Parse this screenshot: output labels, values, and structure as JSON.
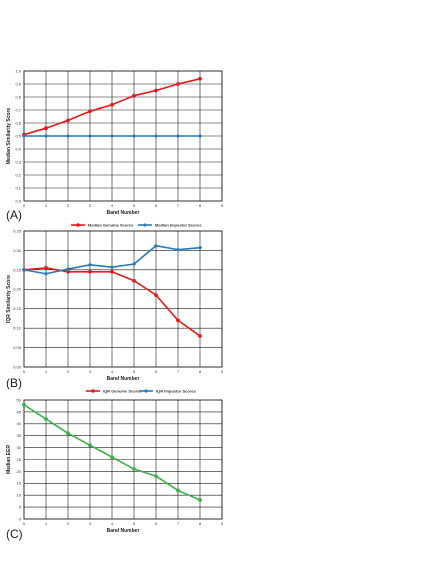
{
  "chart_data": [
    {
      "type": "line",
      "panel_label": "(A)",
      "xlabel": "Band Number",
      "ylabel": "Median Similarity Score",
      "xlim": [
        0,
        9
      ],
      "ylim": [
        0,
        1.0
      ],
      "x_ticks": [
        "0",
        "1",
        "2",
        "3",
        "4",
        "5",
        "6",
        "7",
        "8",
        "9"
      ],
      "y_ticks": [
        "0.0",
        "0.1",
        "0.2",
        "0.3",
        "0.4",
        "0.5",
        "0.6",
        "0.7",
        "0.8",
        "0.9",
        "1.0"
      ],
      "grid": true,
      "legend_position": "bottom",
      "x": [
        0,
        1,
        2,
        3,
        4,
        5,
        6,
        7,
        8
      ],
      "series": [
        {
          "name": "Median Genuine Scores",
          "color": "#e8191c",
          "marker": "circle",
          "values": [
            0.51,
            0.56,
            0.62,
            0.69,
            0.74,
            0.81,
            0.85,
            0.9,
            0.94
          ]
        },
        {
          "name": "Median Impostor Scores",
          "color": "#2a7ab8",
          "marker": "diamond",
          "values": [
            0.5,
            0.5,
            0.5,
            0.5,
            0.5,
            0.5,
            0.5,
            0.5,
            0.5
          ]
        }
      ]
    },
    {
      "type": "line",
      "panel_label": "(B)",
      "xlabel": "Band Number",
      "ylabel": "IQR Similarity Score",
      "xlim": [
        0,
        9
      ],
      "ylim": [
        0,
        0.35
      ],
      "x_ticks": [
        "0",
        "1",
        "2",
        "3",
        "4",
        "5",
        "6",
        "7",
        "8",
        "9"
      ],
      "y_ticks": [
        "0.00",
        "0.05",
        "0.10",
        "0.15",
        "0.20",
        "0.25",
        "0.30",
        "0.35"
      ],
      "grid": true,
      "legend_position": "bottom",
      "x": [
        0,
        1,
        2,
        3,
        4,
        5,
        6,
        7,
        8
      ],
      "series": [
        {
          "name": "IQR Genuine Scores",
          "color": "#e8191c",
          "marker": "circle",
          "values": [
            0.25,
            0.255,
            0.245,
            0.245,
            0.245,
            0.222,
            0.185,
            0.12,
            0.08
          ]
        },
        {
          "name": "IQR Impostor Scores",
          "color": "#2a7ab8",
          "marker": "diamond",
          "values": [
            0.25,
            0.24,
            0.252,
            0.263,
            0.257,
            0.265,
            0.312,
            0.302,
            0.307
          ]
        }
      ]
    },
    {
      "type": "line",
      "panel_label": "(C)",
      "xlabel": "Band Number",
      "ylabel": "Median EER",
      "xlim": [
        0,
        9
      ],
      "ylim": [
        0,
        50
      ],
      "x_ticks": [
        "0",
        "1",
        "2",
        "3",
        "4",
        "5",
        "6",
        "7",
        "8",
        "9"
      ],
      "y_ticks": [
        "0",
        "5",
        "10",
        "15",
        "20",
        "25",
        "30",
        "35",
        "40",
        "45",
        "50"
      ],
      "grid": true,
      "legend_position": "none",
      "x": [
        0,
        1,
        2,
        3,
        4,
        5,
        6,
        7,
        8
      ],
      "series": [
        {
          "name": "",
          "color": "#3cb04a",
          "marker": "circle",
          "values": [
            48,
            42,
            36,
            31,
            26,
            21,
            18,
            12,
            8
          ]
        }
      ]
    }
  ]
}
